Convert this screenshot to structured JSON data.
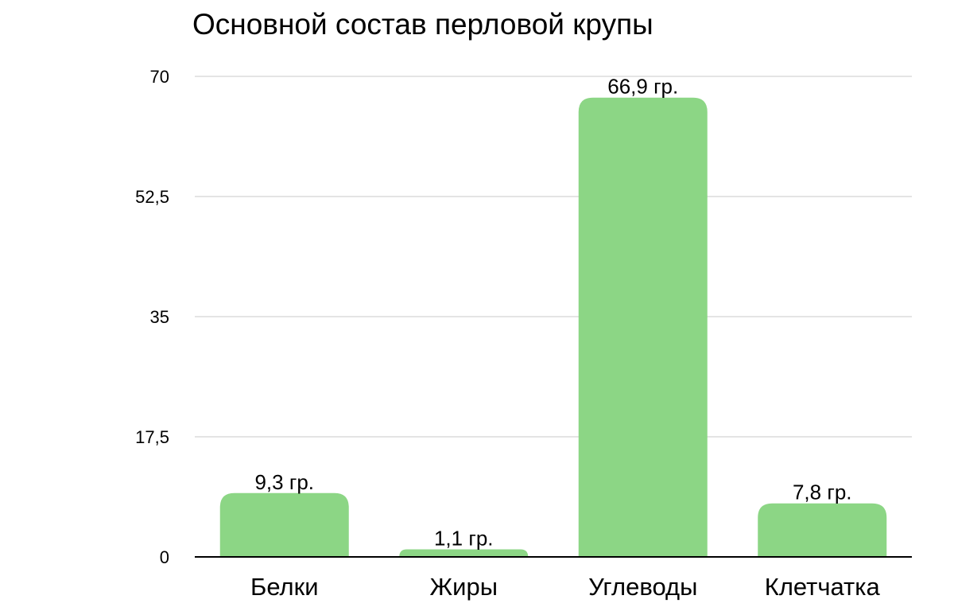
{
  "chart_data": {
    "type": "bar",
    "title": "Основной состав перловой крупы",
    "xlabel": "",
    "ylabel": "",
    "categories": [
      "Белки",
      "Жиры",
      "Углеводы",
      "Клетчатка"
    ],
    "values": [
      9.3,
      1.1,
      66.9,
      7.8
    ],
    "data_labels": [
      "9,3 гр.",
      "1,1 гр.",
      "66,9 гр.",
      "7,8 гр."
    ],
    "ylim": [
      0,
      70
    ],
    "yticks": [
      0,
      17.5,
      35,
      52.5,
      70
    ],
    "ytick_labels": [
      "0",
      "17,5",
      "35",
      "52,5",
      "70"
    ],
    "grid": true,
    "legend": "none",
    "bar_color": "#8CD685",
    "grid_color": "#C8C8C8",
    "axis_color": "#000000"
  }
}
